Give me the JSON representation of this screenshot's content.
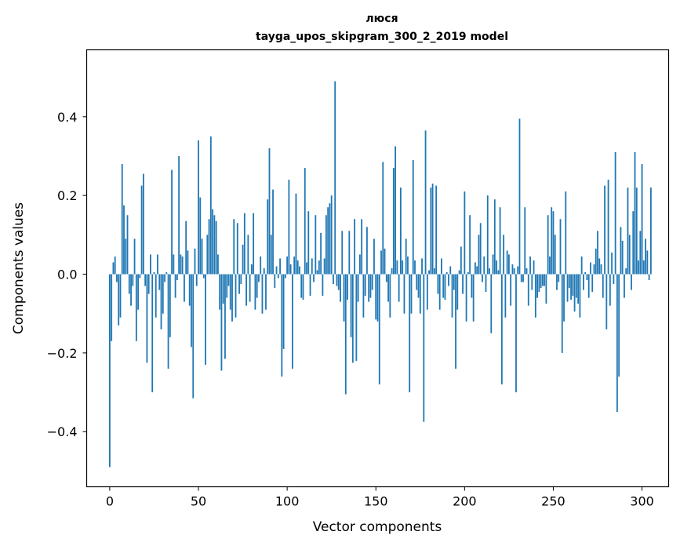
{
  "chart_data": {
    "type": "bar",
    "title_line1": "люся",
    "title_line2": "tayga_upos_skipgram_300_2_2019 model",
    "xlabel": "Vector components",
    "ylabel": "Components values",
    "xlim": [
      -13,
      315
    ],
    "ylim": [
      -0.54,
      0.57
    ],
    "xticks": [
      0,
      50,
      100,
      150,
      200,
      250,
      300
    ],
    "yticks": [
      0.4,
      0.2,
      0.0,
      -0.2,
      -0.4
    ],
    "ytick_labels": [
      "0.4",
      "0.2",
      "0.0",
      "−0.2",
      "−0.4"
    ],
    "color": "#1f77b4",
    "values": [
      -0.49,
      -0.17,
      0.03,
      0.045,
      -0.02,
      -0.13,
      -0.11,
      0.28,
      0.175,
      0.09,
      0.15,
      -0.05,
      -0.08,
      -0.03,
      0.09,
      -0.17,
      -0.09,
      -0.01,
      0.225,
      0.255,
      -0.03,
      -0.225,
      -0.05,
      0.05,
      -0.3,
      0.005,
      -0.11,
      0.05,
      -0.04,
      -0.14,
      -0.1,
      -0.02,
      0.005,
      -0.24,
      -0.16,
      0.265,
      0.05,
      -0.06,
      -0.015,
      0.3,
      0.05,
      0.045,
      -0.07,
      0.135,
      0.06,
      -0.08,
      -0.185,
      -0.315,
      0.065,
      -0.03,
      0.34,
      0.195,
      0.09,
      -0.01,
      -0.23,
      0.1,
      0.14,
      0.35,
      0.165,
      0.15,
      0.135,
      0.05,
      -0.09,
      -0.245,
      -0.075,
      -0.215,
      -0.06,
      -0.03,
      -0.09,
      -0.12,
      0.14,
      -0.11,
      0.13,
      -0.05,
      -0.025,
      0.075,
      0.155,
      -0.08,
      0.1,
      -0.07,
      0.025,
      0.155,
      -0.09,
      -0.06,
      -0.02,
      0.045,
      -0.1,
      0.015,
      -0.09,
      0.19,
      0.32,
      0.1,
      0.215,
      -0.035,
      0.02,
      -0.01,
      0.04,
      -0.26,
      -0.19,
      -0.01,
      0.045,
      0.24,
      0.025,
      -0.24,
      0.045,
      0.205,
      0.035,
      0.02,
      -0.06,
      -0.065,
      0.27,
      0.03,
      0.16,
      -0.055,
      0.04,
      -0.02,
      0.15,
      0.01,
      0.035,
      0.105,
      -0.055,
      0.04,
      0.15,
      0.17,
      0.18,
      0.2,
      -0.025,
      0.49,
      -0.03,
      -0.04,
      -0.07,
      0.11,
      -0.12,
      -0.305,
      -0.065,
      0.11,
      -0.16,
      -0.225,
      0.14,
      -0.22,
      -0.07,
      0.05,
      0.14,
      -0.11,
      -0.055,
      0.12,
      -0.07,
      -0.06,
      -0.04,
      0.09,
      -0.115,
      -0.12,
      -0.28,
      0.06,
      0.285,
      0.065,
      -0.02,
      -0.07,
      -0.11,
      0.015,
      0.27,
      0.325,
      0.035,
      -0.07,
      0.22,
      0.035,
      -0.1,
      0.09,
      0.045,
      -0.3,
      -0.1,
      0.29,
      0.035,
      -0.04,
      -0.06,
      -0.1,
      0.04,
      -0.375,
      0.365,
      -0.09,
      0.01,
      0.22,
      0.23,
      0.015,
      0.225,
      -0.05,
      -0.09,
      0.04,
      -0.06,
      -0.065,
      0.005,
      -0.03,
      0.02,
      -0.11,
      -0.04,
      -0.24,
      -0.09,
      0.01,
      0.07,
      -0.05,
      0.21,
      -0.12,
      0.005,
      0.15,
      -0.06,
      -0.12,
      0.03,
      0.02,
      0.1,
      0.13,
      -0.02,
      0.045,
      -0.045,
      0.2,
      0.015,
      -0.15,
      0.05,
      0.19,
      0.035,
      0.01,
      0.17,
      -0.28,
      0.1,
      -0.11,
      0.06,
      0.05,
      -0.08,
      0.025,
      0.015,
      -0.3,
      0.02,
      0.395,
      -0.02,
      -0.02,
      0.17,
      0.015,
      -0.08,
      0.045,
      -0.04,
      0.035,
      -0.11,
      -0.06,
      -0.045,
      -0.035,
      -0.03,
      -0.03,
      -0.075,
      0.15,
      0.045,
      0.17,
      0.16,
      0.1,
      -0.04,
      -0.02,
      0.14,
      -0.2,
      -0.12,
      0.21,
      -0.07,
      -0.035,
      -0.065,
      -0.055,
      -0.095,
      -0.06,
      -0.075,
      -0.11,
      0.045,
      -0.04,
      0.005,
      -0.015,
      -0.06,
      0.03,
      -0.045,
      0.025,
      0.065,
      0.11,
      0.04,
      0.025,
      -0.06,
      0.225,
      -0.14,
      0.24,
      -0.08,
      0.055,
      -0.025,
      0.31,
      -0.35,
      -0.26,
      0.12,
      0.085,
      -0.06,
      0.015,
      0.22,
      0.1,
      -0.04,
      0.16,
      0.31,
      0.22,
      0.035,
      0.11,
      0.28,
      0.035,
      0.09,
      0.06,
      -0.015,
      0.22
    ]
  }
}
